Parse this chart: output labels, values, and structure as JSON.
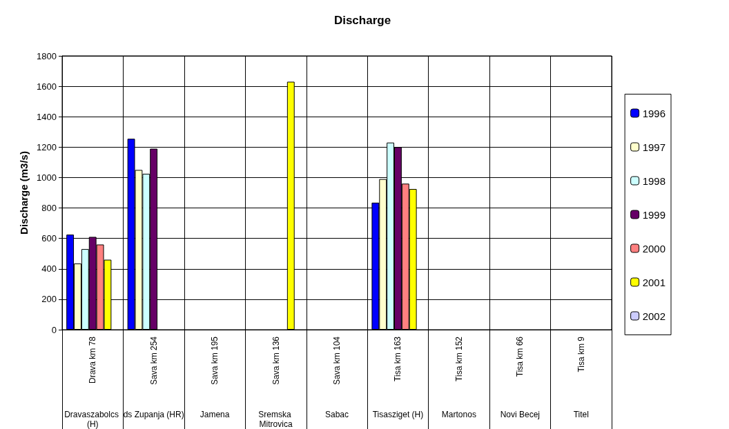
{
  "chart_data": {
    "type": "bar",
    "title": "Discharge",
    "ylabel": "Discharge (m3/s)",
    "categories": [
      "Drava km 78",
      "Sava km 254",
      "Sava km 195",
      "Sava km 136",
      "Sava km 104",
      "Tisa km 163",
      "Tisa km 152",
      "Tisa km 66",
      "Tisa km 9"
    ],
    "annotations": [
      "Dravaszabolcs (H)",
      "ds Zupanja (HR)",
      "Jamena",
      "Sremska Mitrovica",
      "Sabac",
      "Tisasziget (H)",
      "Martonos",
      "Novi Becej",
      "Titel"
    ],
    "series": [
      {
        "name": "1996",
        "color": "#0000ff",
        "values": [
          625,
          1255,
          null,
          null,
          null,
          835,
          null,
          null,
          null
        ]
      },
      {
        "name": "1997",
        "color": "#ffffcc",
        "values": [
          435,
          1050,
          null,
          null,
          null,
          990,
          null,
          null,
          null
        ]
      },
      {
        "name": "1998",
        "color": "#ccffff",
        "values": [
          530,
          1025,
          null,
          null,
          null,
          1230,
          null,
          null,
          null
        ]
      },
      {
        "name": "1999",
        "color": "#660066",
        "values": [
          610,
          1190,
          null,
          null,
          null,
          1200,
          null,
          null,
          null
        ]
      },
      {
        "name": "2000",
        "color": "#ff8080",
        "values": [
          560,
          null,
          null,
          null,
          null,
          960,
          null,
          null,
          null
        ]
      },
      {
        "name": "2001",
        "color": "#ffff00",
        "values": [
          460,
          null,
          null,
          1630,
          null,
          925,
          null,
          null,
          null
        ]
      },
      {
        "name": "2002",
        "color": "#ccccff",
        "values": [
          null,
          null,
          null,
          null,
          null,
          null,
          null,
          null,
          null
        ]
      }
    ],
    "ylim": [
      0,
      1800
    ],
    "yticks": [
      0,
      200,
      400,
      600,
      800,
      1000,
      1200,
      1400,
      1600,
      1800
    ],
    "grid": true,
    "legend": "right"
  }
}
